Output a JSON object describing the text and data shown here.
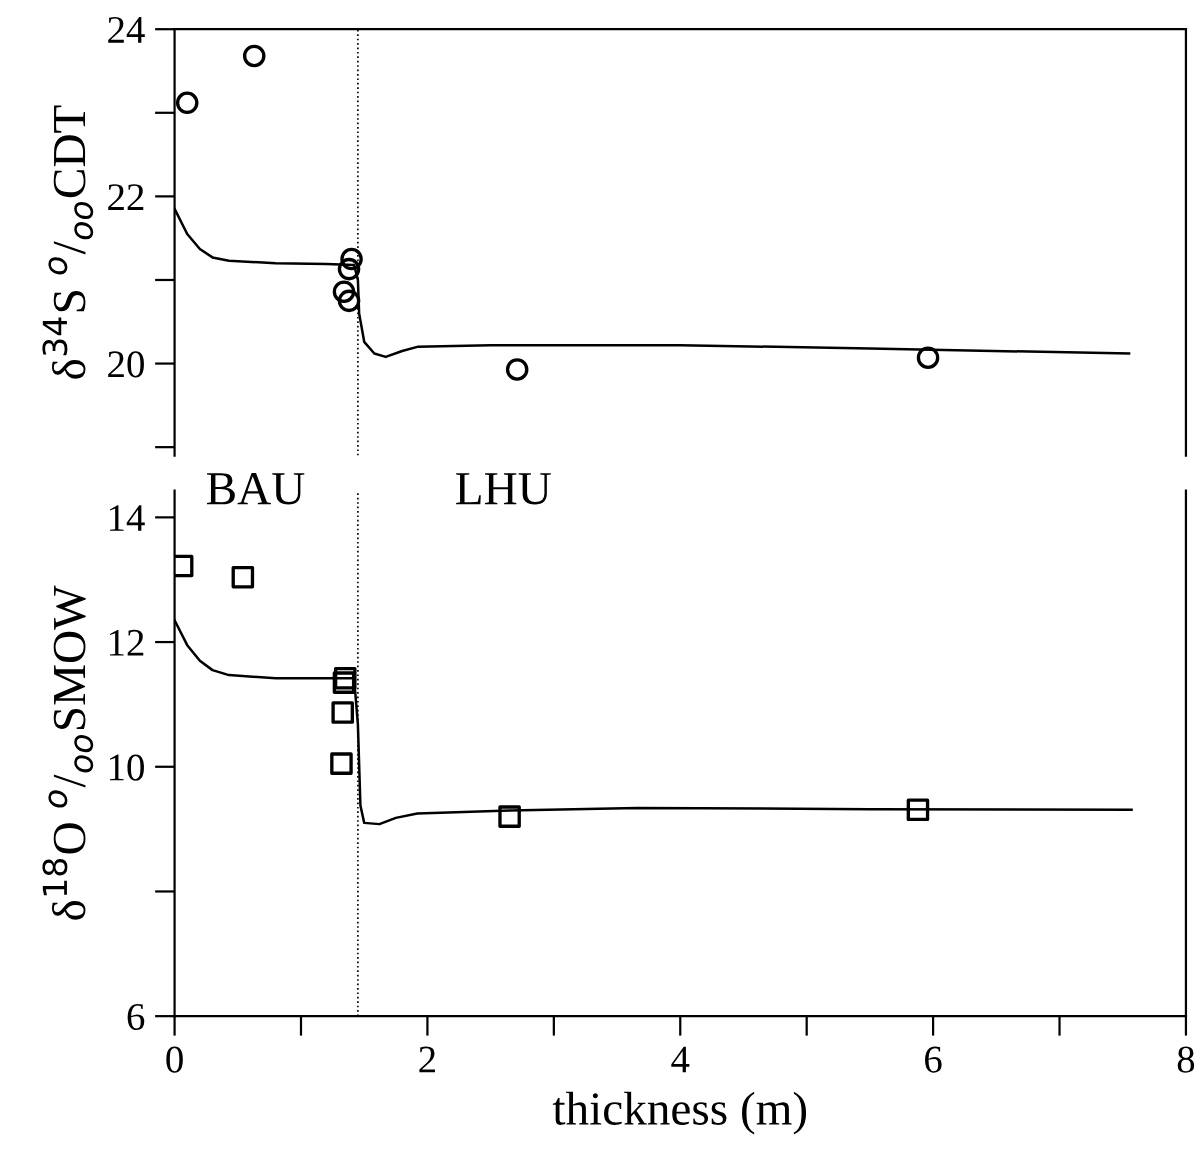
{
  "chart_data": [
    {
      "type": "scatter",
      "ylabel": "δ$^{34}$S $^{o}$/$_{oo}$CDT",
      "xlim": [
        0,
        8
      ],
      "ylim": [
        18.9,
        24
      ],
      "yticks": [
        {
          "value": 19,
          "label": null
        },
        20,
        {
          "value": 21,
          "label": null
        },
        22,
        {
          "value": 23,
          "label": null
        },
        24
      ],
      "tick_labels": "y",
      "grid": false,
      "legend": false,
      "ref_lines": [
        {
          "axis": "x",
          "value": 1.45,
          "label": null,
          "color": "#000000",
          "line_style": "dotted"
        }
      ],
      "series": [
        {
          "type": "scatter",
          "marker": "circle",
          "color": "#000000",
          "x": [
            0.1,
            0.63,
            1.4,
            1.38,
            1.34,
            1.38,
            2.71,
            5.96
          ],
          "values": [
            23.12,
            23.68,
            21.25,
            21.13,
            20.86,
            20.75,
            19.93,
            20.07
          ]
        },
        {
          "type": "line",
          "marker": "none",
          "line_style": "solid",
          "color": "#000000",
          "x": [
            0,
            0.1,
            0.2,
            0.3,
            0.43,
            0.8,
            1.2,
            1.42,
            1.45,
            1.46,
            1.5,
            1.58,
            1.67,
            1.8,
            1.92,
            2.5,
            4,
            5.5,
            7.55
          ],
          "values": [
            21.85,
            21.55,
            21.37,
            21.27,
            21.23,
            21.2,
            21.19,
            21.18,
            21.0,
            20.6,
            20.26,
            20.12,
            20.08,
            20.15,
            20.2,
            20.22,
            20.22,
            20.18,
            20.12
          ]
        }
      ]
    },
    {
      "type": "scatter",
      "xlabel": "thickness (m)",
      "ylabel": "δ$^{18}$O $^{o}$/$_{oo}$SMOW",
      "xlim": [
        0,
        8
      ],
      "ylim": [
        6,
        14.43
      ],
      "xticks": [
        0,
        {
          "value": 1,
          "label": null
        },
        2,
        {
          "value": 3,
          "label": null
        },
        4,
        {
          "value": 5,
          "label": null
        },
        6,
        {
          "value": 7,
          "label": null
        },
        8
      ],
      "yticks": [
        6,
        {
          "value": 8,
          "label": null
        },
        10,
        12,
        14
      ],
      "grid": false,
      "legend": false,
      "ref_lines": [
        {
          "axis": "x",
          "value": 1.45,
          "label": null,
          "color": "#000000",
          "line_style": "dotted"
        }
      ],
      "annotations": [
        "BAU",
        "LHU"
      ],
      "series": [
        {
          "type": "scatter",
          "marker": "square",
          "color": "#000000",
          "x": [
            0.06,
            0.54,
            1.35,
            1.34,
            1.33,
            1.32,
            2.65,
            5.88
          ],
          "values": [
            13.22,
            13.04,
            11.42,
            11.35,
            10.87,
            10.05,
            9.2,
            9.31
          ]
        },
        {
          "type": "line",
          "marker": "none",
          "line_style": "solid",
          "color": "#000000",
          "x": [
            0,
            0.1,
            0.2,
            0.3,
            0.43,
            0.8,
            1.2,
            1.42,
            1.45,
            1.47,
            1.5,
            1.62,
            1.75,
            1.92,
            2.65,
            3.66,
            5.5,
            7.57
          ],
          "values": [
            12.35,
            11.95,
            11.7,
            11.55,
            11.47,
            11.42,
            11.42,
            11.42,
            10.68,
            9.38,
            9.1,
            9.08,
            9.18,
            9.25,
            9.3,
            9.34,
            9.32,
            9.31
          ]
        }
      ]
    }
  ]
}
